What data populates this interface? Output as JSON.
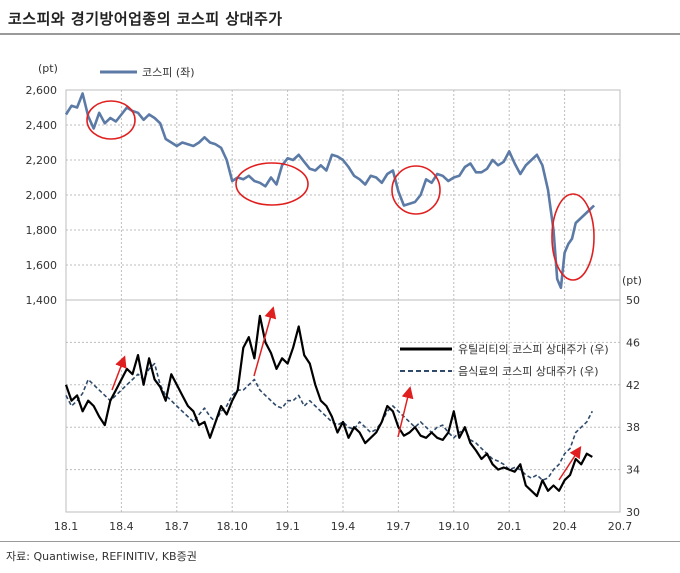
{
  "title": "코스피와 경기방어업종의 코스피 상대주가",
  "source": "자료: Quantiwise, REFINITIV, KB증권",
  "colors": {
    "kospi": "#5b7aa6",
    "utilities": "#000000",
    "food": "#2f4a6b",
    "highlight": "#e02020",
    "grid": "#bdbdbd"
  },
  "chart_data": [
    {
      "type": "line",
      "title": "",
      "ylabel": "(pt)",
      "ylim": [
        1400,
        2600
      ],
      "yticks": [
        "1,400",
        "1,600",
        "1,800",
        "2,000",
        "2,200",
        "2,400",
        "2,600"
      ],
      "grid": true,
      "legend_placement": "top-left",
      "series": [
        {
          "name": "코스피 (좌)",
          "x": [
            0,
            0.3,
            0.6,
            0.9,
            1.2,
            1.5,
            1.8,
            2.1,
            2.4,
            2.7,
            3.0,
            3.3,
            3.6,
            3.9,
            4.2,
            4.5,
            4.8,
            5.1,
            5.4,
            5.7,
            6.0,
            6.3,
            6.6,
            6.9,
            7.2,
            7.5,
            7.8,
            8.1,
            8.4,
            8.7,
            9.0,
            9.3,
            9.6,
            9.9,
            10.2,
            10.5,
            10.8,
            11.1,
            11.4,
            11.7,
            12.0,
            12.3,
            12.6,
            12.9,
            13.2,
            13.5,
            13.8,
            14.1,
            14.4,
            14.7,
            15.0,
            15.3,
            15.6,
            15.9,
            16.2,
            16.5,
            16.8,
            17.1,
            17.4,
            17.7,
            18.0,
            18.3,
            18.6,
            18.9,
            19.2,
            19.5,
            19.8,
            20.1,
            20.4,
            20.7,
            21.0,
            21.3,
            21.6,
            21.9,
            22.2,
            22.5,
            22.8,
            23.1,
            23.4,
            23.7,
            24.0,
            24.3,
            24.6,
            24.9,
            25.2,
            25.5,
            25.8,
            26.1,
            26.4,
            26.6,
            26.8,
            27.0,
            27.2,
            27.4,
            27.6,
            27.8,
            28.0,
            28.2,
            28.4,
            28.6
          ],
          "values": [
            2460,
            2510,
            2500,
            2580,
            2450,
            2380,
            2470,
            2410,
            2440,
            2420,
            2460,
            2500,
            2480,
            2470,
            2430,
            2460,
            2440,
            2410,
            2320,
            2300,
            2280,
            2300,
            2290,
            2280,
            2300,
            2330,
            2300,
            2290,
            2270,
            2200,
            2080,
            2100,
            2090,
            2110,
            2080,
            2070,
            2050,
            2100,
            2060,
            2170,
            2210,
            2200,
            2230,
            2190,
            2150,
            2140,
            2170,
            2140,
            2230,
            2220,
            2200,
            2160,
            2110,
            2090,
            2060,
            2110,
            2100,
            2070,
            2120,
            2140,
            2020,
            1940,
            1950,
            1960,
            2000,
            2090,
            2070,
            2120,
            2110,
            2080,
            2100,
            2110,
            2160,
            2180,
            2130,
            2130,
            2150,
            2200,
            2170,
            2190,
            2250,
            2180,
            2120,
            2170,
            2200,
            2230,
            2170,
            2030,
            1800,
            1520,
            1470,
            1670,
            1720,
            1750,
            1840,
            1860,
            1880,
            1900,
            1920,
            1940
          ]
        }
      ]
    },
    {
      "type": "line",
      "title": "",
      "ylabel": "(pt)",
      "ylim": [
        30,
        50
      ],
      "yticks": [
        "30",
        "34",
        "38",
        "42",
        "46",
        "50"
      ],
      "xlabels": [
        "18.1",
        "18.4",
        "18.7",
        "18.10",
        "19.1",
        "19.4",
        "19.7",
        "19.10",
        "20.1",
        "20.4",
        "20.7"
      ],
      "grid": true,
      "legend_placement": "right",
      "series": [
        {
          "name": "유틸리티의 코스피 상대주가 (우)",
          "x": [
            0,
            0.3,
            0.6,
            0.9,
            1.2,
            1.5,
            1.8,
            2.1,
            2.4,
            2.7,
            3.0,
            3.3,
            3.6,
            3.9,
            4.2,
            4.5,
            4.8,
            5.1,
            5.4,
            5.7,
            6.0,
            6.3,
            6.6,
            6.9,
            7.2,
            7.5,
            7.8,
            8.1,
            8.4,
            8.7,
            9.0,
            9.3,
            9.6,
            9.9,
            10.2,
            10.5,
            10.8,
            11.1,
            11.4,
            11.7,
            12.0,
            12.3,
            12.6,
            12.9,
            13.2,
            13.5,
            13.8,
            14.1,
            14.4,
            14.7,
            15.0,
            15.3,
            15.6,
            15.9,
            16.2,
            16.5,
            16.8,
            17.1,
            17.4,
            17.7,
            18.0,
            18.3,
            18.6,
            18.9,
            19.2,
            19.5,
            19.8,
            20.1,
            20.4,
            20.7,
            21.0,
            21.3,
            21.6,
            21.9,
            22.2,
            22.5,
            22.8,
            23.1,
            23.4,
            23.7,
            24.0,
            24.3,
            24.6,
            24.9,
            25.2,
            25.5,
            25.8,
            26.1,
            26.4,
            26.7,
            27.0,
            27.3,
            27.6,
            27.9,
            28.2,
            28.5
          ],
          "values": [
            42.0,
            40.5,
            41.0,
            39.5,
            40.5,
            40.0,
            39.0,
            38.2,
            40.5,
            41.5,
            42.5,
            43.5,
            43.0,
            44.8,
            42.0,
            44.5,
            42.5,
            41.8,
            40.5,
            43.0,
            42.0,
            41.0,
            40.0,
            39.5,
            38.2,
            38.5,
            37.0,
            38.5,
            40.0,
            39.2,
            40.5,
            41.5,
            45.5,
            46.5,
            44.5,
            48.5,
            46.0,
            45.0,
            43.5,
            44.5,
            44.0,
            45.5,
            47.5,
            44.8,
            44.0,
            42.0,
            40.5,
            40.0,
            39.0,
            37.5,
            38.5,
            37.0,
            38.0,
            37.5,
            36.5,
            37.0,
            37.5,
            38.5,
            40.0,
            39.5,
            38.0,
            37.2,
            37.5,
            38.0,
            37.2,
            37.0,
            37.5,
            37.0,
            36.8,
            37.5,
            39.5,
            37.0,
            38.0,
            36.5,
            35.8,
            35.0,
            35.5,
            34.5,
            34.0,
            34.2,
            34.0,
            33.8,
            34.5,
            32.5,
            32.0,
            31.5,
            33.0,
            32.0,
            32.5,
            32.0,
            33.0,
            33.5,
            35.0,
            34.5,
            35.5,
            35.2
          ]
        },
        {
          "name": "음식료의 코스피 상대주가 (우)",
          "x": [
            0,
            0.3,
            0.6,
            0.9,
            1.2,
            1.5,
            1.8,
            2.1,
            2.4,
            2.7,
            3.0,
            3.3,
            3.6,
            3.9,
            4.2,
            4.5,
            4.8,
            5.1,
            5.4,
            5.7,
            6.0,
            6.3,
            6.6,
            6.9,
            7.2,
            7.5,
            7.8,
            8.1,
            8.4,
            8.7,
            9.0,
            9.3,
            9.6,
            9.9,
            10.2,
            10.5,
            10.8,
            11.1,
            11.4,
            11.7,
            12.0,
            12.3,
            12.6,
            12.9,
            13.2,
            13.5,
            13.8,
            14.1,
            14.4,
            14.7,
            15.0,
            15.3,
            15.6,
            15.9,
            16.2,
            16.5,
            16.8,
            17.1,
            17.4,
            17.7,
            18.0,
            18.3,
            18.6,
            18.9,
            19.2,
            19.5,
            19.8,
            20.1,
            20.4,
            20.7,
            21.0,
            21.3,
            21.6,
            21.9,
            22.2,
            22.5,
            22.8,
            23.1,
            23.4,
            23.7,
            24.0,
            24.3,
            24.6,
            24.9,
            25.2,
            25.5,
            25.8,
            26.1,
            26.4,
            26.7,
            27.0,
            27.3,
            27.6,
            27.9,
            28.2,
            28.5
          ],
          "values": [
            41.0,
            40.0,
            40.5,
            41.2,
            42.5,
            42.0,
            41.5,
            41.0,
            40.5,
            41.0,
            41.5,
            42.0,
            42.5,
            43.0,
            42.5,
            43.5,
            44.0,
            42.0,
            41.0,
            40.5,
            40.0,
            39.5,
            39.0,
            38.5,
            39.2,
            39.8,
            39.0,
            38.5,
            39.5,
            40.0,
            41.0,
            41.5,
            41.5,
            42.0,
            42.5,
            41.5,
            41.0,
            40.5,
            40.0,
            39.8,
            40.5,
            40.5,
            41.0,
            40.0,
            40.5,
            40.0,
            39.5,
            39.0,
            38.5,
            38.2,
            38.5,
            38.0,
            37.8,
            38.5,
            38.0,
            37.5,
            37.8,
            38.5,
            39.5,
            40.0,
            39.5,
            39.0,
            38.5,
            38.0,
            38.5,
            38.0,
            37.5,
            38.0,
            38.2,
            37.5,
            37.0,
            37.5,
            37.8,
            36.8,
            36.5,
            36.0,
            35.5,
            35.0,
            34.8,
            34.5,
            34.0,
            34.2,
            34.0,
            33.5,
            33.2,
            33.5,
            33.0,
            33.2,
            34.0,
            34.5,
            35.5,
            36.0,
            37.5,
            38.0,
            38.5,
            39.5
          ]
        }
      ]
    }
  ]
}
